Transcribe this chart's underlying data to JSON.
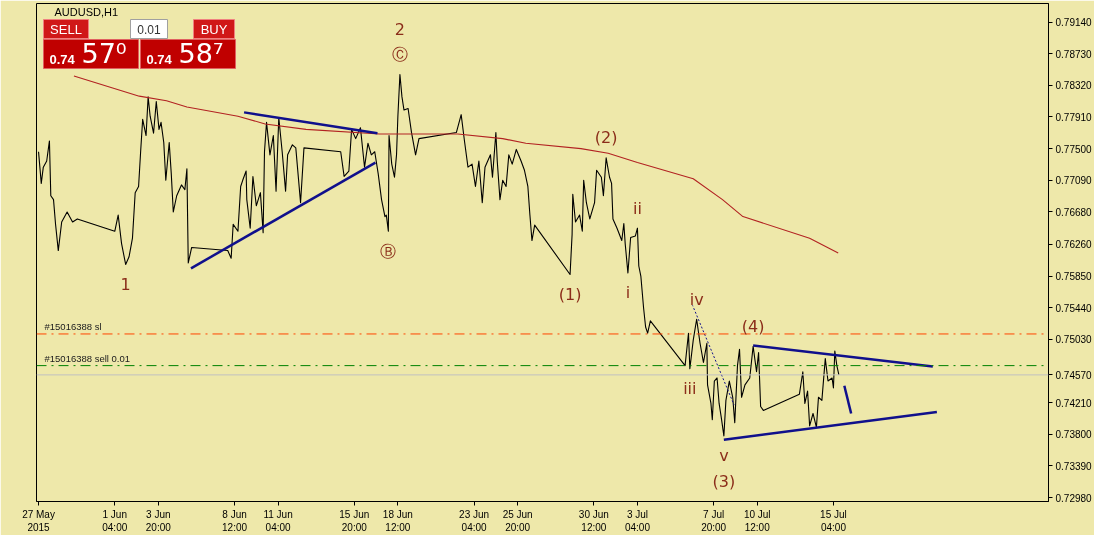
{
  "chart_data": {
    "type": "line",
    "title": "AUDUSD,H1",
    "xlim": [
      "2015-05-27T09:00",
      "2015-07-28T08:00"
    ],
    "xticks": [
      {
        "value": "2015-05-27T12:00",
        "label": "27 May 2015"
      },
      {
        "value": "2015-06-01T04:00",
        "label": "1 Jun 04:00"
      },
      {
        "value": "2015-06-03T20:00",
        "label": "3 Jun 20:00"
      },
      {
        "value": "2015-06-08T12:00",
        "label": "8 Jun 12:00"
      },
      {
        "value": "2015-06-11T04:00",
        "label": "11 Jun 04:00"
      },
      {
        "value": "2015-06-15T20:00",
        "label": "15 Jun 20:00"
      },
      {
        "value": "2015-06-18T12:00",
        "label": "18 Jun 12:00"
      },
      {
        "value": "2015-06-23T04:00",
        "label": "23 Jun 04:00"
      },
      {
        "value": "2015-06-25T20:00",
        "label": "25 Jun 20:00"
      },
      {
        "value": "2015-06-30T12:00",
        "label": "30 Jun 12:00"
      },
      {
        "value": "2015-07-03T04:00",
        "label": "3 Jul 04:00"
      },
      {
        "value": "2015-07-07T20:00",
        "label": "7 Jul 20:00"
      },
      {
        "value": "2015-07-10T12:00",
        "label": "10 Jul 12:00"
      },
      {
        "value": "2015-07-15T04:00",
        "label": "15 Jul 04:00"
      }
    ],
    "ylim": [
      0.7293,
      0.7938
    ],
    "yticks": [
      {
        "value": 0.7914,
        "label": "0.79140"
      },
      {
        "value": 0.7873,
        "label": "0.78730"
      },
      {
        "value": 0.7832,
        "label": "0.78320"
      },
      {
        "value": 0.7791,
        "label": "0.77910"
      },
      {
        "value": 0.775,
        "label": "0.77500"
      },
      {
        "value": 0.7709,
        "label": "0.77090"
      },
      {
        "value": 0.7668,
        "label": "0.76680"
      },
      {
        "value": 0.7626,
        "label": "0.76260"
      },
      {
        "value": 0.7585,
        "label": "0.75850"
      },
      {
        "value": 0.7544,
        "label": "0.75440"
      },
      {
        "value": 0.7503,
        "label": "0.75030"
      },
      {
        "value": 0.7457,
        "label": "0.74570"
      },
      {
        "value": 0.7421,
        "label": "0.74210"
      },
      {
        "value": 0.738,
        "label": "0.73800"
      },
      {
        "value": 0.7339,
        "label": "0.73390"
      },
      {
        "value": 0.7298,
        "label": "0.72980"
      }
    ],
    "series": [
      {
        "color": "#000000",
        "x": [
          "2015-05-27T12:00",
          "2015-05-27T16:00",
          "2015-05-27T19:00",
          "2015-05-28T00:00",
          "2015-05-28T04:00",
          "2015-05-28T06:00",
          "2015-05-28T10:00",
          "2015-05-28T13:00",
          "2015-05-28T17:00",
          "2015-05-28T22:00",
          "2015-05-29T06:00",
          "2015-05-29T14:00",
          "2015-05-29T21:00",
          "2015-06-01T04:00",
          "2015-06-01T09:00",
          "2015-06-01T14:00",
          "2015-06-01T20:00",
          "2015-06-02T01:00",
          "2015-06-02T06:00",
          "2015-06-02T10:00",
          "2015-06-02T15:00",
          "2015-06-02T18:00",
          "2015-06-02T21:00",
          "2015-06-03T02:00",
          "2015-06-03T05:00",
          "2015-06-03T08:00",
          "2015-06-03T13:00",
          "2015-06-03T17:00",
          "2015-06-03T21:00",
          "2015-06-04T00:00",
          "2015-06-04T04:00",
          "2015-06-04T07:00",
          "2015-06-04T12:00",
          "2015-06-04T15:00",
          "2015-06-04T18:00",
          "2015-06-04T23:00",
          "2015-06-05T06:00",
          "2015-06-05T11:00",
          "2015-06-05T14:00",
          "2015-06-05T16:00",
          "2015-06-05T21:00",
          "2015-06-08T02:00",
          "2015-06-08T07:00",
          "2015-06-08T10:00",
          "2015-06-08T17:00",
          "2015-06-08T21:00",
          "2015-06-09T00:00",
          "2015-06-09T05:00",
          "2015-06-09T06:00",
          "2015-06-09T11:00",
          "2015-06-09T15:00",
          "2015-06-09T20:00",
          "2015-06-10T02:00",
          "2015-06-10T06:00",
          "2015-06-10T08:00",
          "2015-06-10T11:00",
          "2015-06-10T16:00",
          "2015-06-10T21:00",
          "2015-06-11T01:00",
          "2015-06-11T05:00",
          "2015-06-11T10:00",
          "2015-06-11T15:00",
          "2015-06-11T18:00",
          "2015-06-12T01:00",
          "2015-06-12T06:00",
          "2015-06-12T13:00",
          "2015-06-12T18:00",
          "2015-06-15T00:00",
          "2015-06-15T05:00",
          "2015-06-15T12:00",
          "2015-06-15T16:00",
          "2015-06-15T22:00",
          "2015-06-16T05:00",
          "2015-06-16T11:00",
          "2015-06-16T16:00",
          "2015-06-16T21:00",
          "2015-06-17T02:00",
          "2015-06-17T07:00",
          "2015-06-17T12:00",
          "2015-06-17T17:00",
          "2015-06-17T19:00",
          "2015-06-17T22:00",
          "2015-06-17T23:00",
          "2015-06-18T03:00",
          "2015-06-18T07:00",
          "2015-06-18T10:00",
          "2015-06-18T12:00",
          "2015-06-18T15:00",
          "2015-06-18T18:00",
          "2015-06-18T21:00",
          "2015-06-19T03:00",
          "2015-06-19T08:00",
          "2015-06-19T14:00",
          "2015-06-19T19:00",
          "2015-06-22T02:00",
          "2015-06-22T09:00",
          "2015-06-22T14:00",
          "2015-06-22T19:00",
          "2015-06-23T01:00",
          "2015-06-23T06:00",
          "2015-06-23T11:00",
          "2015-06-23T16:00",
          "2015-06-23T20:00",
          "2015-06-24T04:00",
          "2015-06-24T07:00",
          "2015-06-24T12:00",
          "2015-06-24T14:00",
          "2015-06-24T18:00",
          "2015-06-24T22:00",
          "2015-06-25T03:00",
          "2015-06-25T07:00",
          "2015-06-25T12:00",
          "2015-06-25T18:00",
          "2015-06-26T01:00",
          "2015-06-26T06:00",
          "2015-06-26T11:00",
          "2015-06-26T14:00",
          "2015-06-26T17:00",
          "2015-06-26T21:00",
          "2015-06-29T01:00",
          "2015-06-29T04:00",
          "2015-06-29T05:00",
          "2015-06-29T09:00",
          "2015-06-29T15:00",
          "2015-06-29T19:00",
          "2015-06-29T21:00",
          "2015-06-30T01:00",
          "2015-06-30T06:00",
          "2015-06-30T13:00",
          "2015-06-30T16:00",
          "2015-06-30T23:00",
          "2015-07-01T02:00",
          "2015-07-01T06:00",
          "2015-07-01T11:00",
          "2015-07-01T14:00",
          "2015-07-01T16:00",
          "2015-07-01T22:00",
          "2015-07-02T05:00",
          "2015-07-02T08:00",
          "2015-07-02T10:00",
          "2015-07-02T14:00",
          "2015-07-02T18:00",
          "2015-07-03T01:00",
          "2015-07-03T04:00",
          "2015-07-03T06:00",
          "2015-07-03T09:00",
          "2015-07-03T13:00",
          "2015-07-03T16:00",
          "2015-07-03T19:00",
          "2015-07-03T23:00",
          "2015-07-06T02:00",
          "2015-07-06T07:00",
          "2015-07-06T09:00",
          "2015-07-06T14:00",
          "2015-07-06T19:00",
          "2015-07-07T00:00",
          "2015-07-07T05:00",
          "2015-07-07T10:00",
          "2015-07-07T11:00",
          "2015-07-07T16:00",
          "2015-07-07T18:00",
          "2015-07-07T21:00",
          "2015-07-08T01:00",
          "2015-07-08T04:00",
          "2015-07-08T07:00",
          "2015-07-08T11:00",
          "2015-07-08T14:00",
          "2015-07-08T19:00",
          "2015-07-09T00:00",
          "2015-07-09T03:00",
          "2015-07-09T07:00",
          "2015-07-09T10:00",
          "2015-07-09T13:00",
          "2015-07-09T18:00",
          "2015-07-10T01:00",
          "2015-07-10T06:00",
          "2015-07-10T11:00",
          "2015-07-10T14:00",
          "2015-07-10T17:00",
          "2015-07-10T21:00",
          "2015-07-13T02:00",
          "2015-07-13T07:00",
          "2015-07-13T10:00",
          "2015-07-13T14:00",
          "2015-07-13T17:00",
          "2015-07-13T22:00",
          "2015-07-14T03:00",
          "2015-07-14T06:00",
          "2015-07-14T11:00",
          "2015-07-14T16:00",
          "2015-07-14T20:00",
          "2015-07-15T02:00",
          "2015-07-15T04:00",
          "2015-07-15T06:00",
          "2015-07-15T09:00",
          "2015-07-15T12:00"
        ],
        "values": [
          0.7746,
          0.7705,
          0.7726,
          0.7734,
          0.776,
          0.7689,
          0.7684,
          0.7652,
          0.7618,
          0.7655,
          0.7668,
          0.7655,
          0.7659,
          0.7643,
          0.7664,
          0.7627,
          0.76,
          0.761,
          0.7634,
          0.7693,
          0.7701,
          0.7746,
          0.7788,
          0.7767,
          0.7817,
          0.7792,
          0.777,
          0.7811,
          0.7775,
          0.7784,
          0.7758,
          0.7709,
          0.7758,
          0.7718,
          0.7668,
          0.7689,
          0.7703,
          0.7697,
          0.7724,
          0.7602,
          0.7622,
          0.7618,
          0.7608,
          0.7652,
          0.7643,
          0.7701,
          0.7709,
          0.7721,
          0.7684,
          0.7647,
          0.7714,
          0.7676,
          0.7693,
          0.7641,
          0.7746,
          0.7784,
          0.7742,
          0.7767,
          0.7695,
          0.779,
          0.7746,
          0.7695,
          0.7742,
          0.7755,
          0.7751,
          0.768,
          0.7751,
          0.7746,
          0.7714,
          0.7721,
          0.7775,
          0.7763,
          0.7777,
          0.7726,
          0.7757,
          0.7742,
          0.7746,
          0.7718,
          0.7684,
          0.7662,
          0.7664,
          0.7643,
          0.7767,
          0.773,
          0.7713,
          0.7742,
          0.7792,
          0.7846,
          0.7817,
          0.78,
          0.7802,
          0.7771,
          0.7742,
          0.7763,
          0.7771,
          0.7794,
          0.7759,
          0.7726,
          0.773,
          0.7701,
          0.7734,
          0.768,
          0.7726,
          0.7742,
          0.7713,
          0.7771,
          0.7734,
          0.7684,
          0.7709,
          0.7701,
          0.7742,
          0.773,
          0.7749,
          0.7734,
          0.7722,
          0.7701,
          0.7664,
          0.7631,
          0.7651,
          0.7587,
          0.7639,
          0.7691,
          0.7655,
          0.7664,
          0.7643,
          0.7709,
          0.768,
          0.7659,
          0.768,
          0.7722,
          0.7713,
          0.7689,
          0.7738,
          0.7713,
          0.7705,
          0.7659,
          0.7647,
          0.7631,
          0.7653,
          0.7627,
          0.7589,
          0.7635,
          0.7637,
          0.7647,
          0.7598,
          0.7585,
          0.7544,
          0.7519,
          0.7511,
          0.7527,
          0.7469,
          0.7511,
          0.7465,
          0.7502,
          0.7529,
          0.7498,
          0.7473,
          0.7498,
          0.7444,
          0.742,
          0.7399,
          0.7449,
          0.7453,
          0.742,
          0.7403,
          0.7378,
          0.7424,
          0.7449,
          0.7428,
          0.7395,
          0.7469,
          0.749,
          0.7428,
          0.7444,
          0.7453,
          0.7494,
          0.7461,
          0.7486,
          0.7416,
          0.7411,
          0.7432,
          0.7461,
          0.742,
          0.7436,
          0.7391,
          0.7407,
          0.7389,
          0.7428,
          0.7424,
          0.7478,
          0.7449,
          0.7453,
          0.744,
          0.7488,
          0.7469,
          0.7457
        ]
      },
      {
        "color": "#b22222",
        "x": [
          "2015-05-29T16:00",
          "2015-06-02T16:00",
          "2015-06-04T08:00",
          "2015-06-05T14:00",
          "2015-06-08T17:00",
          "2015-06-10T09:00",
          "2015-06-12T21:00",
          "2015-06-17T09:00",
          "2015-06-22T04:00",
          "2015-06-24T22:00",
          "2015-06-26T08:00",
          "2015-06-29T17:00",
          "2015-07-01T09:00",
          "2015-07-03T04:00",
          "2015-07-06T14:00",
          "2015-07-08T09:00",
          "2015-07-09T15:00",
          "2015-07-13T17:00",
          "2015-07-15T11:00"
        ],
        "values": [
          0.7844,
          0.7818,
          0.7812,
          0.7804,
          0.7792,
          0.7782,
          0.7775,
          0.7769,
          0.7769,
          0.7763,
          0.7757,
          0.775,
          0.7744,
          0.7732,
          0.7711,
          0.7684,
          0.7662,
          0.7634,
          0.7615
        ]
      },
      {
        "color": "#10108c",
        "x": [
          "2015-06-09T02:00",
          "2015-06-17T06:00"
        ],
        "values": [
          0.7797,
          0.777
        ]
      },
      {
        "color": "#10108c",
        "x": [
          "2015-06-05T20:00",
          "2015-06-17T03:00"
        ],
        "values": [
          0.7595,
          0.7732
        ]
      },
      {
        "color": "#10108c",
        "x": [
          "2015-07-10T06:00",
          "2015-07-21T06:00"
        ],
        "values": [
          0.7495,
          0.7468
        ]
      },
      {
        "color": "#10108c",
        "x": [
          "2015-07-08T11:00",
          "2015-07-21T12:00"
        ],
        "values": [
          0.7373,
          0.7409
        ]
      },
      {
        "color": "#10108c",
        "x": [
          "2015-07-15T20:00",
          "2015-07-16T06:00"
        ],
        "values": [
          0.7443,
          0.7407
        ]
      },
      {
        "color": "#10108c",
        "x": [
          "2015-07-06T13:00",
          "2015-07-09T02:00"
        ],
        "values": [
          0.7547,
          0.7418
        ],
        "line_style": "dotted"
      }
    ],
    "ref_lines": [
      {
        "axis": "y",
        "value": 0.751,
        "label": "#15016388 sl",
        "color": "#ff4500",
        "line_style": "dashdot"
      },
      {
        "axis": "y",
        "value": 0.7469,
        "label": "#15016388 sell 0.01",
        "color": "#008000",
        "line_style": "dashdot"
      },
      {
        "axis": "y",
        "value": 0.7457,
        "color": "#c0c0c0",
        "line_style": "solid"
      }
    ],
    "annotations": [
      {
        "text": "1",
        "x": "2015-06-01T20:00",
        "y": 0.76
      },
      {
        "text": "Ⓒ",
        "x": "2015-06-18T15:00",
        "y": 0.7846
      },
      {
        "text": "2",
        "x": "2015-06-18T15:00",
        "y": 0.7846
      },
      {
        "text": "Ⓑ",
        "x": "2015-06-17T22:00",
        "y": 0.7643
      },
      {
        "text": "(1)",
        "x": "2015-06-29T01:00",
        "y": 0.7587
      },
      {
        "text": "(2)",
        "x": "2015-07-01T06:00",
        "y": 0.7738
      },
      {
        "text": "i",
        "x": "2015-07-02T14:00",
        "y": 0.7589
      },
      {
        "text": "ii",
        "x": "2015-07-03T04:00",
        "y": 0.7647
      },
      {
        "text": "iii",
        "x": "2015-07-06T09:00",
        "y": 0.7465
      },
      {
        "text": "iv",
        "x": "2015-07-06T19:00",
        "y": 0.7529
      },
      {
        "text": "v",
        "x": "2015-07-08T11:00",
        "y": 0.7378
      },
      {
        "text": "(3)",
        "x": "2015-07-08T11:00",
        "y": 0.7378
      },
      {
        "text": "(4)",
        "x": "2015-07-10T06:00",
        "y": 0.7494
      },
      "SELL",
      "0.01",
      "BUY",
      "0.74 57⁰",
      "0.74 58⁷"
    ]
  }
}
